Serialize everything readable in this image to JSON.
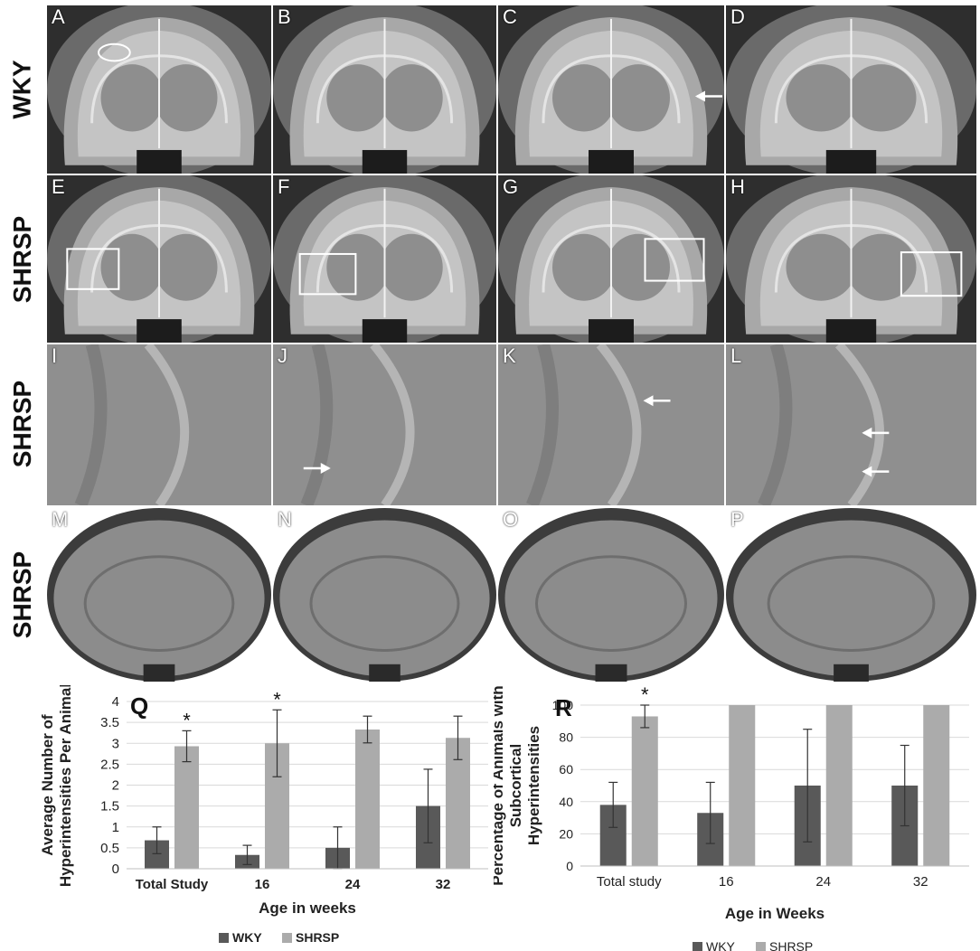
{
  "row_labels": [
    "WKY",
    "SHRSP",
    "SHRSP",
    "SHRSP"
  ],
  "panel_letters": [
    "A",
    "B",
    "C",
    "D",
    "E",
    "F",
    "G",
    "H",
    "I",
    "J",
    "K",
    "L",
    "M",
    "N",
    "O",
    "P"
  ],
  "chart_data": [
    {
      "panel_letter": "Q",
      "type": "bar",
      "categories": [
        "Total Study",
        "16",
        "24",
        "32"
      ],
      "series": [
        {
          "name": "WKY",
          "values": [
            0.68,
            0.33,
            0.5,
            1.5
          ],
          "errors": [
            0.32,
            0.23,
            0.5,
            0.88
          ],
          "color": "#595959"
        },
        {
          "name": "SHRSP",
          "values": [
            2.93,
            3.0,
            3.33,
            3.13
          ],
          "errors": [
            0.37,
            0.8,
            0.32,
            0.52
          ],
          "color": "#ababab"
        }
      ],
      "significance": [
        "*",
        "*",
        "",
        ""
      ],
      "ylabel": "Average Number of Hyperintensities Per Animal",
      "xlabel": "Age in weeks",
      "ylim": [
        0,
        4
      ],
      "yticks": [
        "0",
        "0.5",
        "1",
        "1.5",
        "2",
        "2.5",
        "3",
        "3.5",
        "4"
      ],
      "grid": true,
      "legend_position": "bottom"
    },
    {
      "panel_letter": "R",
      "type": "bar",
      "categories": [
        "Total study",
        "16",
        "24",
        "32"
      ],
      "series": [
        {
          "name": "WKY",
          "values": [
            38,
            33,
            50,
            50
          ],
          "errors": [
            14,
            19,
            35,
            25
          ],
          "color": "#595959"
        },
        {
          "name": "SHRSP",
          "values": [
            93,
            100,
            100,
            100
          ],
          "errors": [
            7,
            0,
            0,
            0
          ],
          "color": "#ababab"
        }
      ],
      "significance": [
        "*",
        "",
        "",
        ""
      ],
      "ylabel": "Percentage of Animals with Subcortical Hyperintensities",
      "xlabel": "Age in Weeks",
      "ylim": [
        0,
        100
      ],
      "yticks": [
        "0",
        "20",
        "40",
        "60",
        "80",
        "100"
      ],
      "grid": true,
      "legend_position": "bottom"
    }
  ]
}
